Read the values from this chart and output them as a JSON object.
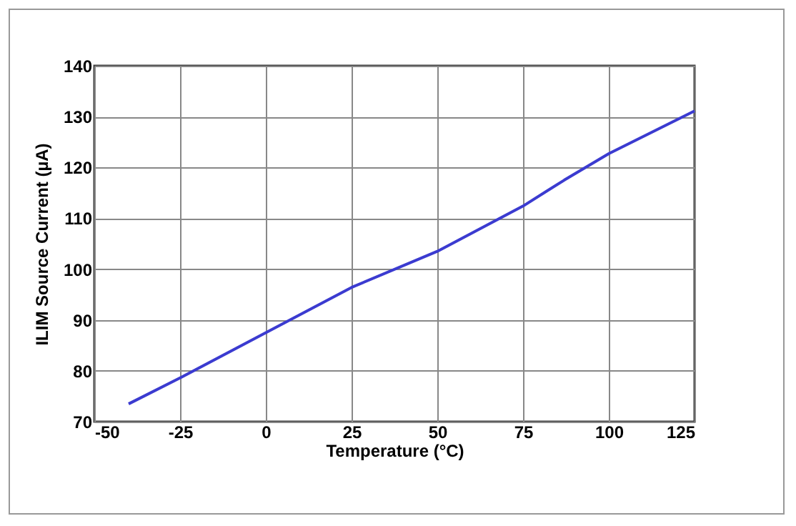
{
  "chart_data": {
    "type": "line",
    "xlabel": "Temperature (°C)",
    "ylabel": "ILIM Source Current (µA)",
    "x": [
      -40,
      -25,
      0,
      25,
      50,
      75,
      87,
      100,
      125
    ],
    "series": [
      {
        "color": "#3b3bd0",
        "values": [
          73.5,
          78.6,
          87.5,
          96.4,
          103.5,
          112.4,
          117.5,
          122.7,
          131.1
        ]
      }
    ],
    "xlim": [
      -50,
      125
    ],
    "xticks": [
      -50,
      -25,
      0,
      25,
      50,
      75,
      100,
      125
    ],
    "ylim": [
      70,
      140
    ],
    "yticks": [
      70,
      80,
      90,
      100,
      110,
      120,
      130,
      140
    ],
    "grid": true,
    "marker": "none",
    "line_style": "solid"
  }
}
